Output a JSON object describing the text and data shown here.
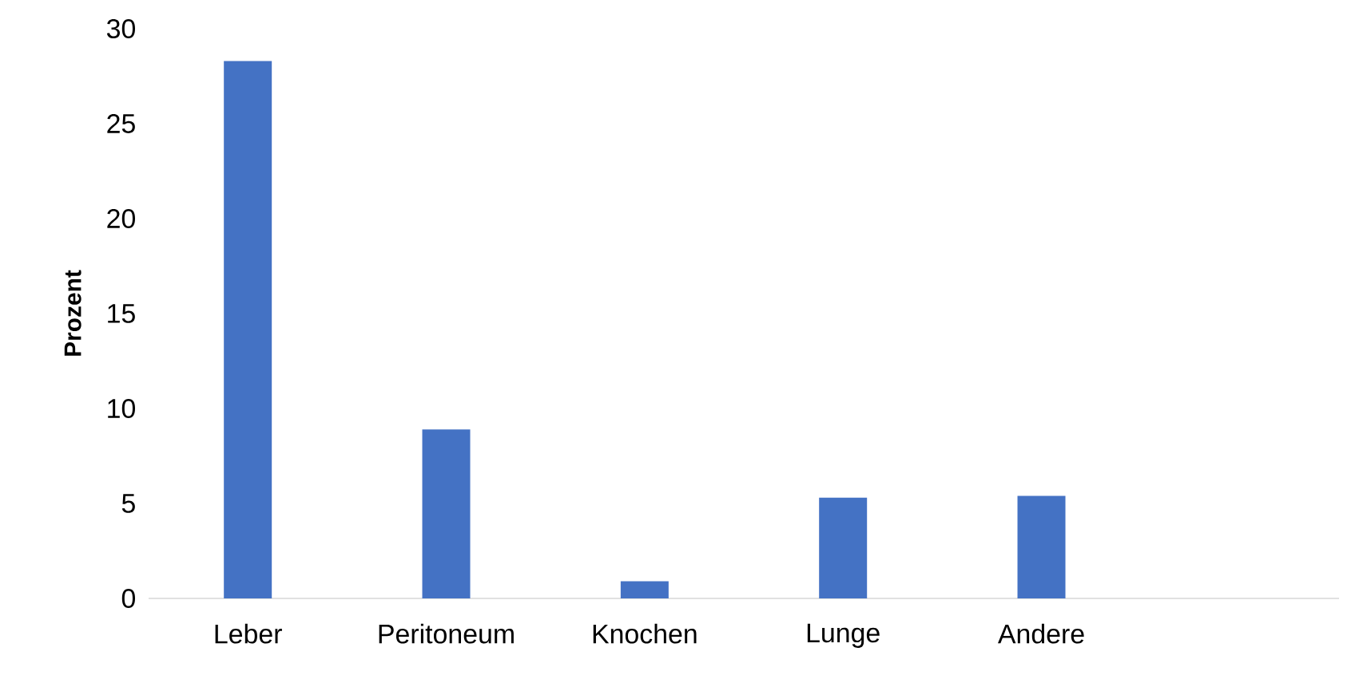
{
  "chart_data": {
    "type": "bar",
    "ylabel": "Prozent",
    "categories": [
      "Leber",
      "Peritoneum",
      "Knochen",
      "Lunge",
      "Andere",
      null
    ],
    "values": [
      28.3,
      8.9,
      0.9,
      5.3,
      5.4,
      null
    ],
    "color": "#4472c4",
    "ylim": [
      0,
      30
    ],
    "yticks": [
      0,
      5,
      10,
      15,
      20,
      25,
      30
    ]
  }
}
